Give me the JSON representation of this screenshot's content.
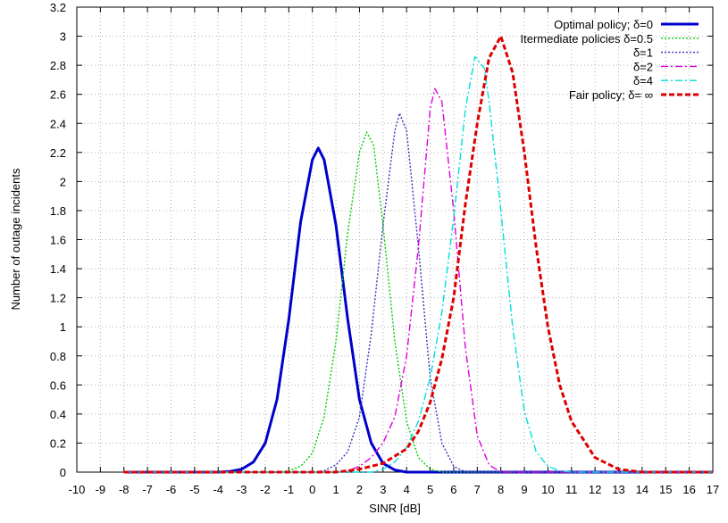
{
  "chart_data": {
    "type": "line",
    "title": "",
    "xlabel": "SINR [dB]",
    "ylabel": "Number of outage incidents",
    "xlim": [
      -10,
      17
    ],
    "ylim": [
      0,
      3.2
    ],
    "x_ticks": [
      "-10",
      "-9",
      "-8",
      "-7",
      "-6",
      "-5",
      "-4",
      "-3",
      "-2",
      "-1",
      "0",
      "1",
      "2",
      "3",
      "4",
      "5",
      "6",
      "7",
      "8",
      "9",
      "10",
      "11",
      "12",
      "13",
      "14",
      "15",
      "16",
      "17"
    ],
    "y_ticks": [
      "0",
      "0.2",
      "0.4",
      "0.6",
      "0.8",
      "1",
      "1.2",
      "1.4",
      "1.6",
      "1.8",
      "2",
      "2.2",
      "2.4",
      "2.6",
      "2.8",
      "3",
      "3.2"
    ],
    "grid": true,
    "legend_position": "top-right",
    "series": [
      {
        "name": "Optimal policy; δ=0",
        "color": "#0000cc",
        "style": "solid",
        "x": [
          -8,
          -4,
          -3.5,
          -3,
          -2.5,
          -2,
          -1.5,
          -1,
          -0.5,
          0,
          0.25,
          0.5,
          1,
          1.5,
          2,
          2.5,
          3,
          3.5,
          4,
          5,
          17
        ],
        "y": [
          0,
          0,
          0.005,
          0.02,
          0.07,
          0.2,
          0.5,
          1.05,
          1.72,
          2.15,
          2.23,
          2.15,
          1.7,
          1.05,
          0.5,
          0.2,
          0.06,
          0.015,
          0,
          0,
          0
        ]
      },
      {
        "name": "Itermediate policies δ=0.5",
        "color": "#00cc00",
        "style": "dotted",
        "x": [
          -8,
          -1.5,
          -1,
          -0.5,
          0,
          0.5,
          1,
          1.5,
          2,
          2.3,
          2.6,
          3,
          3.5,
          4,
          4.5,
          5,
          5.5,
          17
        ],
        "y": [
          0,
          0,
          0.01,
          0.04,
          0.13,
          0.38,
          0.9,
          1.65,
          2.2,
          2.34,
          2.25,
          1.7,
          0.9,
          0.35,
          0.1,
          0.02,
          0,
          0
        ]
      },
      {
        "name": "δ=1",
        "color": "#3333bb",
        "style": "dotted",
        "x": [
          -8,
          0,
          0.5,
          1,
          1.5,
          2,
          2.5,
          3,
          3.5,
          3.7,
          4,
          4.5,
          5,
          5.5,
          6,
          6.5,
          17
        ],
        "y": [
          0,
          0,
          0.01,
          0.05,
          0.14,
          0.38,
          0.95,
          1.7,
          2.35,
          2.47,
          2.35,
          1.55,
          0.65,
          0.2,
          0.04,
          0,
          0
        ]
      },
      {
        "name": "δ=2",
        "color": "#dd00dd",
        "style": "dashdot",
        "x": [
          -8,
          1,
          1.5,
          2,
          2.5,
          3,
          3.5,
          4,
          4.5,
          5,
          5.2,
          5.5,
          6,
          6.5,
          7,
          7.5,
          8,
          17
        ],
        "y": [
          0,
          0,
          0.01,
          0.04,
          0.1,
          0.2,
          0.38,
          0.8,
          1.55,
          2.5,
          2.64,
          2.55,
          1.8,
          0.85,
          0.25,
          0.05,
          0,
          0
        ]
      },
      {
        "name": "δ=4",
        "color": "#00dddd",
        "style": "dashdot",
        "x": [
          -8,
          2.5,
          3,
          3.5,
          4,
          4.5,
          5,
          5.5,
          6,
          6.5,
          6.9,
          7.3,
          7.5,
          8,
          8.5,
          9,
          9.5,
          10,
          10.5,
          11,
          17
        ],
        "y": [
          0,
          0,
          0.02,
          0.07,
          0.17,
          0.35,
          0.65,
          1.1,
          1.75,
          2.5,
          2.86,
          2.78,
          2.55,
          1.8,
          1.0,
          0.42,
          0.14,
          0.04,
          0.01,
          0,
          0
        ]
      },
      {
        "name": "Fair policy; δ= ∞",
        "color": "#dd0000",
        "style": "dashed",
        "x": [
          -8,
          1,
          2,
          3,
          4,
          4.5,
          5,
          5.5,
          6,
          6.5,
          7,
          7.5,
          8,
          8.5,
          9,
          9.5,
          10,
          10.5,
          11,
          12,
          13,
          14,
          17
        ],
        "y": [
          0,
          0,
          0.02,
          0.06,
          0.16,
          0.28,
          0.48,
          0.78,
          1.2,
          1.85,
          2.4,
          2.85,
          3.0,
          2.75,
          2.2,
          1.55,
          1.0,
          0.6,
          0.35,
          0.1,
          0.02,
          0,
          0
        ]
      }
    ]
  }
}
